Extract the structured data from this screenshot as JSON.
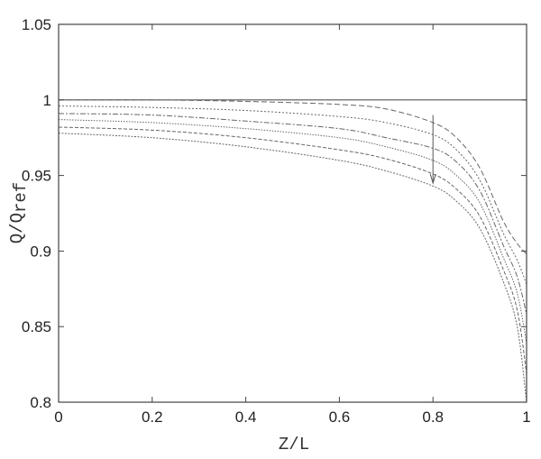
{
  "chart_data": {
    "type": "line",
    "title": "",
    "xlabel": "Z/L",
    "ylabel_main": "Q/Q",
    "ylabel_sub": "ref",
    "xlim": [
      0,
      1
    ],
    "ylim": [
      0.8,
      1.05
    ],
    "xticks": [
      "0",
      "0.2",
      "0.4",
      "0.6",
      "0.8",
      "1"
    ],
    "yticks": [
      "0.8",
      "0.85",
      "0.9",
      "0.95",
      "1",
      "1.05"
    ],
    "grid": false,
    "reference_line": {
      "y": 1.0,
      "color": "#555555"
    },
    "annotation_arrow": {
      "x": 0.8,
      "y_from": 0.99,
      "y_to": 0.945
    },
    "x": [
      0,
      0.2,
      0.4,
      0.6,
      0.7,
      0.8,
      0.85,
      0.9,
      0.95,
      0.98,
      1
    ],
    "series": [
      {
        "values": [
          1.0,
          1.0,
          0.999,
          0.997,
          0.994,
          0.985,
          0.975,
          0.955,
          0.92,
          0.905,
          0.898
        ]
      },
      {
        "values": [
          0.996,
          0.995,
          0.993,
          0.989,
          0.985,
          0.977,
          0.967,
          0.947,
          0.912,
          0.894,
          0.878
        ]
      },
      {
        "values": [
          0.991,
          0.99,
          0.986,
          0.981,
          0.975,
          0.968,
          0.959,
          0.94,
          0.904,
          0.883,
          0.858
        ]
      },
      {
        "values": [
          0.987,
          0.985,
          0.981,
          0.975,
          0.969,
          0.96,
          0.95,
          0.932,
          0.896,
          0.872,
          0.839
        ]
      },
      {
        "values": [
          0.982,
          0.98,
          0.975,
          0.967,
          0.961,
          0.951,
          0.941,
          0.923,
          0.888,
          0.861,
          0.819
        ]
      },
      {
        "values": [
          0.978,
          0.975,
          0.969,
          0.96,
          0.953,
          0.943,
          0.933,
          0.915,
          0.88,
          0.85,
          0.8
        ]
      }
    ],
    "line_color": "#666666"
  }
}
